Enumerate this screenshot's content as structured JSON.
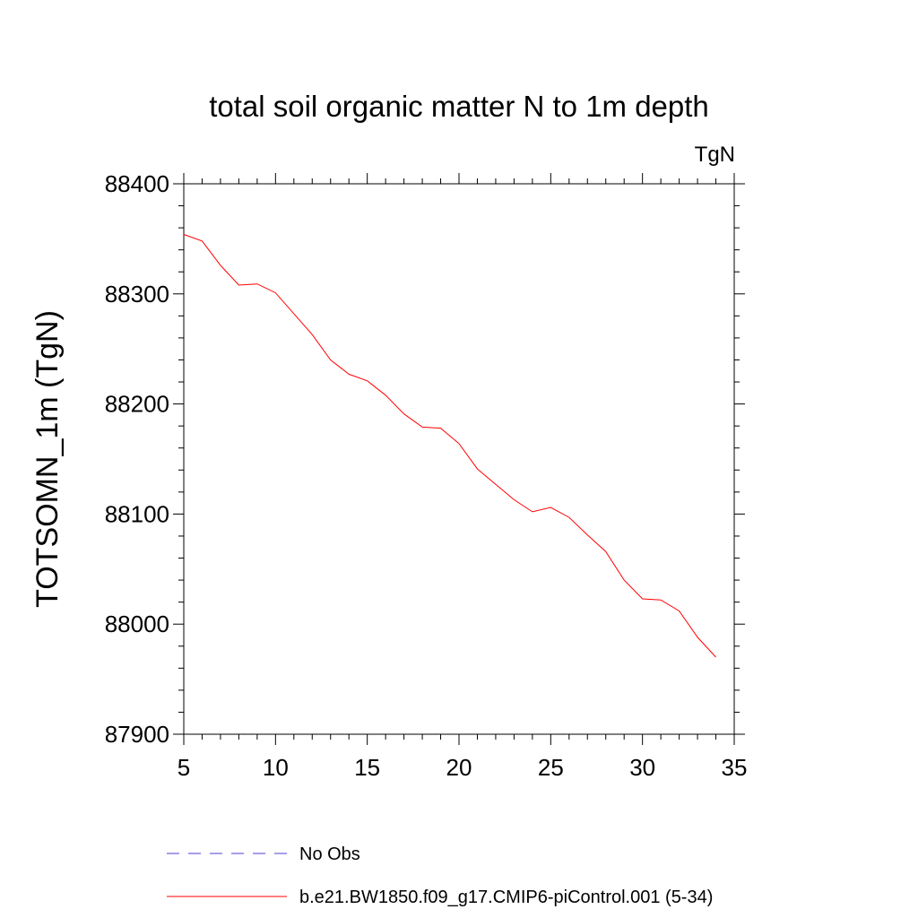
{
  "chart_data": {
    "type": "line",
    "title": "total soil organic matter N to 1m depth",
    "units_label": "TgN",
    "ylabel": "TOTSOMN_1m  (TgN)",
    "xlabel": "",
    "xlim": [
      5,
      35
    ],
    "ylim": [
      87900,
      88400
    ],
    "x_ticks": [
      "5",
      "10",
      "15",
      "20",
      "25",
      "30",
      "35"
    ],
    "y_ticks": [
      "87900",
      "88000",
      "88100",
      "88200",
      "88300",
      "88400"
    ],
    "grid": false,
    "legend_position": "bottom",
    "series": [
      {
        "name": "No Obs",
        "color": "#4b3fd6",
        "style": "dashed",
        "x": [],
        "values": []
      },
      {
        "name": "b.e21.BW1850.f09_g17.CMIP6-piControl.001 (5-34)",
        "color": "#ff0000",
        "style": "solid",
        "x": [
          5,
          6,
          7,
          8,
          9,
          10,
          11,
          12,
          13,
          14,
          15,
          16,
          17,
          18,
          19,
          20,
          21,
          22,
          23,
          24,
          25,
          26,
          27,
          28,
          29,
          30,
          31,
          32,
          33,
          34
        ],
        "values": [
          88354,
          88348,
          88326,
          88308,
          88309,
          88301,
          88282,
          88263,
          88240,
          88227,
          88221,
          88208,
          88191,
          88179,
          88178,
          88164,
          88141,
          88127,
          88113,
          88102,
          88106,
          88097,
          88081,
          88066,
          88040,
          88023,
          88022,
          88012,
          87988,
          87970
        ]
      }
    ]
  }
}
